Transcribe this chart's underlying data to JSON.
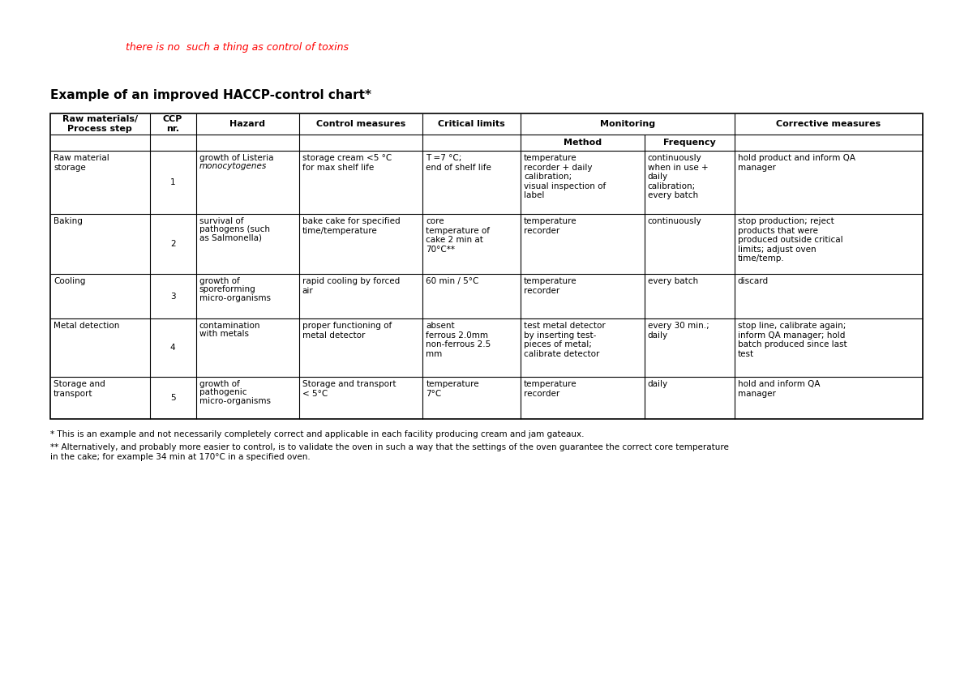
{
  "title_red": "there is no  such a thing as control of toxins",
  "title_main": "Example of an improved HACCP-control chart*",
  "bg_color": "#ffffff",
  "footnote1": "* This is an example and not necessarily completely correct and applicable in each facility producing cream and jam gateaux.",
  "footnote2": "** Alternatively, and probably more easier to control, is to validate the oven in such a way that the settings of the oven guarantee the correct core temperature\nin the cake; for example 34 min at 170°C in a specified oven.",
  "rows": [
    {
      "process": "Raw material\nstorage",
      "ccp": "1",
      "hazard": [
        "growth of ",
        "Listeria\nmonocytogenes"
      ],
      "hazard_italic": [
        false,
        true
      ],
      "control": "storage cream <5 °C\nfor max shelf life",
      "critical": "T =7 °C;\nend of shelf life",
      "method": "temperature\nrecorder + daily\ncalibration;\nvisual inspection of\nlabel",
      "frequency": "continuously\nwhen in use +\ndaily\ncalibration;\nevery batch",
      "corrective": "hold product and inform QA\nmanager"
    },
    {
      "process": "Baking",
      "ccp": "2",
      "hazard": [
        "survival of\npathogens (such\nas ",
        "Salmonella",
        ")"
      ],
      "hazard_italic": [
        false,
        true,
        false
      ],
      "control": "bake cake for specified\ntime/temperature",
      "critical": "core\ntemperature of\ncake 2 min at\n70°C**",
      "method": "temperature\nrecorder",
      "frequency": "continuously",
      "corrective": "stop production; reject\nproducts that were\nproduced outside critical\nlimits; adjust oven\ntime/temp."
    },
    {
      "process": "Cooling",
      "ccp": "3",
      "hazard": [
        "growth of\nsporeforming\nmicro-organisms"
      ],
      "hazard_italic": [
        false
      ],
      "control": "rapid cooling by forced\nair",
      "critical": "60 min / 5°C",
      "method": "temperature\nrecorder",
      "frequency": "every batch",
      "corrective": "discard"
    },
    {
      "process": "Metal detection",
      "ccp": "4",
      "hazard": [
        "contamination\nwith metals"
      ],
      "hazard_italic": [
        false
      ],
      "control": "proper functioning of\nmetal detector",
      "critical": "absent\nferrous 2.0mm\nnon-ferrous 2.5\nmm",
      "method": "test metal detector\nby inserting test-\npieces of metal;\ncalibrate detector",
      "frequency": "every 30 min.;\ndaily",
      "corrective": "stop line, calibrate again;\ninform QA manager; hold\nbatch produced since last\ntest"
    },
    {
      "process": "Storage and\ntransport",
      "ccp": "5",
      "hazard": [
        "growth of\npathogenic\nmicro-organisms"
      ],
      "hazard_italic": [
        false
      ],
      "control": "Storage and transport\n< 5°C",
      "critical": "temperature\n7°C",
      "method": "temperature\nrecorder",
      "frequency": "daily",
      "corrective": "hold and inform QA\nmanager"
    }
  ]
}
